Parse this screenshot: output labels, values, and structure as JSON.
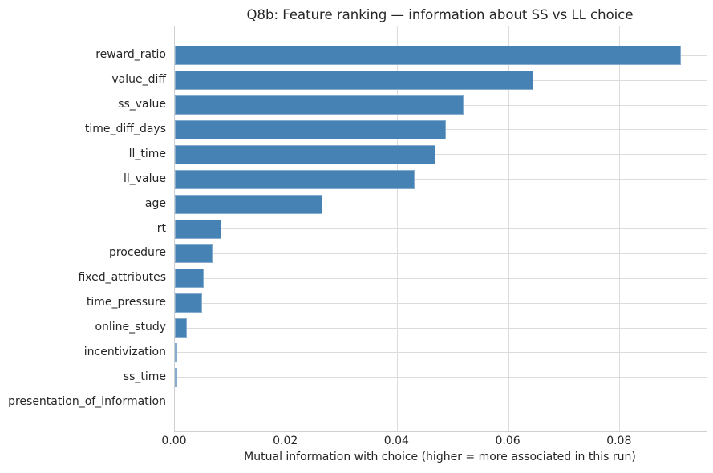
{
  "chart_data": {
    "type": "bar",
    "orientation": "horizontal",
    "title": "Q8b: Feature ranking — information about SS vs LL choice",
    "xlabel": "Mutual information with choice (higher = more associated in this run)",
    "ylabel": "",
    "categories": [
      "reward_ratio",
      "value_diff",
      "ss_value",
      "time_diff_days",
      "ll_time",
      "ll_value",
      "age",
      "rt",
      "procedure",
      "fixed_attributes",
      "time_pressure",
      "online_study",
      "incentivization",
      "ss_time",
      "presentation_of_information"
    ],
    "values": [
      0.091,
      0.0645,
      0.0519,
      0.0487,
      0.0469,
      0.0431,
      0.0266,
      0.0084,
      0.0068,
      0.0052,
      0.0049,
      0.0022,
      0.0005,
      0.0005,
      0.0
    ],
    "xlim": [
      0,
      0.0956
    ],
    "xticks": [
      0,
      0.02,
      0.04,
      0.06,
      0.08
    ],
    "xtick_labels": [
      "0.00",
      "0.02",
      "0.04",
      "0.06",
      "0.08"
    ],
    "grid": true,
    "legend": "none",
    "bar_color": "#4682B4",
    "grid_color": "#dcdcdc",
    "spine_color": "#cfcfcf",
    "text_color": "#262626"
  }
}
